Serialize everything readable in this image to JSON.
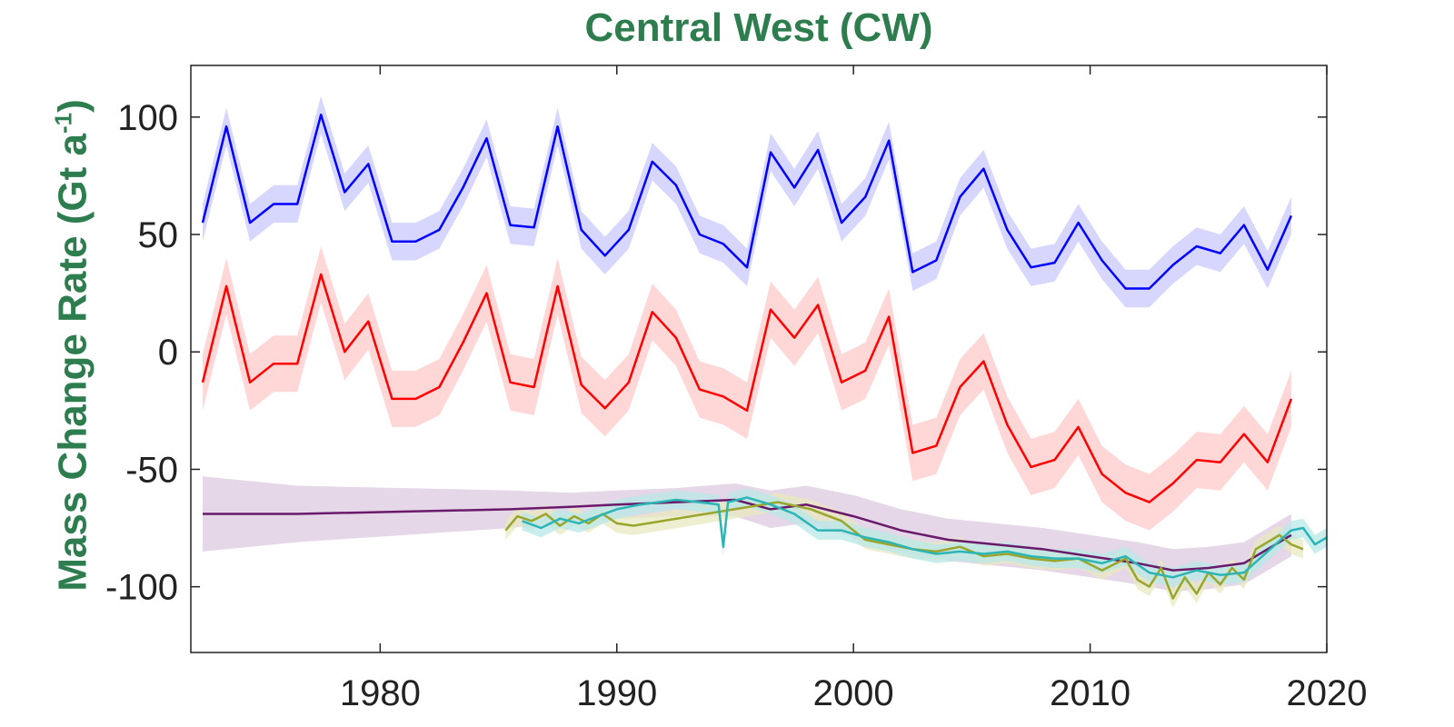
{
  "chart_data": {
    "type": "line",
    "title": "Central West (CW)",
    "ylabel_main": "Mass Change Rate (Gt a",
    "ylabel_sup": "-1",
    "ylabel_end": ")",
    "xlim": [
      1972,
      2020
    ],
    "ylim": [
      -128,
      122
    ],
    "xticks": [
      1980,
      1990,
      2000,
      2010,
      2020
    ],
    "yticks": [
      100,
      50,
      0,
      -50,
      -100
    ],
    "grid": false,
    "series": [
      {
        "color": "#0000ff",
        "band": "#c8c8ff",
        "unc": 8,
        "x": [
          1972.5,
          1973.5,
          1974.5,
          1975.5,
          1976.5,
          1977.5,
          1978.5,
          1979.5,
          1980.5,
          1981.5,
          1982.5,
          1983.5,
          1984.5,
          1985.5,
          1986.5,
          1987.5,
          1988.5,
          1989.5,
          1990.5,
          1991.5,
          1992.5,
          1993.5,
          1994.5,
          1995.5,
          1996.5,
          1997.5,
          1998.5,
          1999.5,
          2000.5,
          2001.5,
          2002.5,
          2003.5,
          2004.5,
          2005.5,
          2006.5,
          2007.5,
          2008.5,
          2009.5,
          2010.5,
          2011.5,
          2012.5,
          2013.5,
          2014.5,
          2015.5,
          2016.5,
          2017.5,
          2018.5
        ],
        "y": [
          55,
          96,
          55,
          63,
          63,
          101,
          68,
          80,
          47,
          47,
          52,
          70,
          91,
          54,
          53,
          96,
          52,
          41,
          52,
          81,
          71,
          50,
          46,
          36,
          85,
          70,
          86,
          55,
          66,
          90,
          34,
          39,
          66,
          78,
          52,
          36,
          38,
          55,
          39,
          27,
          27,
          37,
          45,
          42,
          54,
          35,
          58
        ]
      },
      {
        "color": "#ff0000",
        "band": "#ffcaca",
        "unc": 12,
        "x": [
          1972.5,
          1973.5,
          1974.5,
          1975.5,
          1976.5,
          1977.5,
          1978.5,
          1979.5,
          1980.5,
          1981.5,
          1982.5,
          1983.5,
          1984.5,
          1985.5,
          1986.5,
          1987.5,
          1988.5,
          1989.5,
          1990.5,
          1991.5,
          1992.5,
          1993.5,
          1994.5,
          1995.5,
          1996.5,
          1997.5,
          1998.5,
          1999.5,
          2000.5,
          2001.5,
          2002.5,
          2003.5,
          2004.5,
          2005.5,
          2006.5,
          2007.5,
          2008.5,
          2009.5,
          2010.5,
          2011.5,
          2012.5,
          2013.5,
          2014.5,
          2015.5,
          2016.5,
          2017.5,
          2018.5
        ],
        "y": [
          -13,
          28,
          -13,
          -5,
          -5,
          33,
          0,
          13,
          -20,
          -20,
          -15,
          4,
          25,
          -13,
          -15,
          28,
          -14,
          -24,
          -13,
          17,
          6,
          -16,
          -19,
          -25,
          18,
          6,
          20,
          -13,
          -8,
          15,
          -43,
          -40,
          -15,
          -4,
          -31,
          -49,
          -46,
          -32,
          -52,
          -60,
          -64,
          -56,
          -46,
          -47,
          -35,
          -47,
          -20
        ]
      },
      {
        "color": "#6a1a6a",
        "band": "#dcc8e0",
        "x": [
          1972.5,
          1976.5,
          1985.5,
          1988,
          1990,
          1992.5,
          1995,
          1996.5,
          1998,
          2000,
          2002,
          2004,
          2006,
          2008,
          2010,
          2012,
          2013.5,
          2015,
          2016.5,
          2018.5
        ],
        "y": [
          -69,
          -69,
          -67,
          -66,
          -65,
          -64,
          -63,
          -67,
          -65,
          -70,
          -76,
          -80,
          -82,
          -84,
          -87,
          -90,
          -93,
          -92,
          -90,
          -78
        ],
        "unc": [
          16,
          12,
          8,
          6,
          6,
          6,
          7,
          8,
          8,
          9,
          9,
          9,
          9,
          9,
          9,
          9,
          9,
          9,
          9,
          9
        ]
      },
      {
        "color": "#9aa52c",
        "band": "#e8e8c0",
        "unc": 4,
        "x": [
          1985.3,
          1985.8,
          1986.4,
          1987.0,
          1987.6,
          1988.2,
          1988.8,
          1989.4,
          1990.0,
          1990.7,
          1996.8,
          1998.2,
          1999.5,
          2000.5,
          2001.5,
          2002.5,
          2003.5,
          2004.5,
          2005.5,
          2006.5,
          2007.5,
          2008.5,
          2009.5,
          2010.5,
          2011.5,
          2012.0,
          2012.5,
          2013.0,
          2013.5,
          2014.0,
          2014.5,
          2015.0,
          2015.5,
          2016.0,
          2016.5,
          2017.0,
          2017.5,
          2018.0,
          2018.5,
          2019.0
        ],
        "y": [
          -76,
          -70,
          -72,
          -69,
          -74,
          -70,
          -73,
          -69,
          -73,
          -74,
          -64,
          -67,
          -72,
          -80,
          -82,
          -84,
          -85,
          -83,
          -87,
          -86,
          -88,
          -89,
          -88,
          -93,
          -88,
          -97,
          -100,
          -92,
          -105,
          -96,
          -103,
          -94,
          -99,
          -92,
          -97,
          -84,
          -81,
          -78,
          -82,
          -84
        ]
      },
      {
        "color": "#2cb5b5",
        "band": "#b8e8e8",
        "unc": 4,
        "x": [
          1986.0,
          1986.8,
          1987.6,
          1988.4,
          1989.2,
          1990.0,
          1991.0,
          1992.5,
          1993.5,
          1994.3,
          1994.5,
          1994.7,
          1995.5,
          1996.5,
          1997.5,
          1998.5,
          1999.5,
          2000.5,
          2001.5,
          2002.5,
          2003.5,
          2004.5,
          2005.5,
          2006.5,
          2007.5,
          2008.5,
          2009.5,
          2010.5,
          2011.5,
          2012.5,
          2013.5,
          2014.5,
          2015.5,
          2016.5,
          2017.5,
          2018.5,
          2019.0,
          2019.5,
          2020.0
        ],
        "y": [
          -72,
          -75,
          -71,
          -73,
          -70,
          -67,
          -65,
          -63,
          -64,
          -65,
          -83,
          -64,
          -62,
          -65,
          -69,
          -76,
          -76,
          -79,
          -81,
          -84,
          -86,
          -85,
          -86,
          -85,
          -87,
          -88,
          -88,
          -90,
          -87,
          -94,
          -96,
          -93,
          -95,
          -94,
          -85,
          -76,
          -75,
          -82,
          -79
        ]
      }
    ]
  }
}
